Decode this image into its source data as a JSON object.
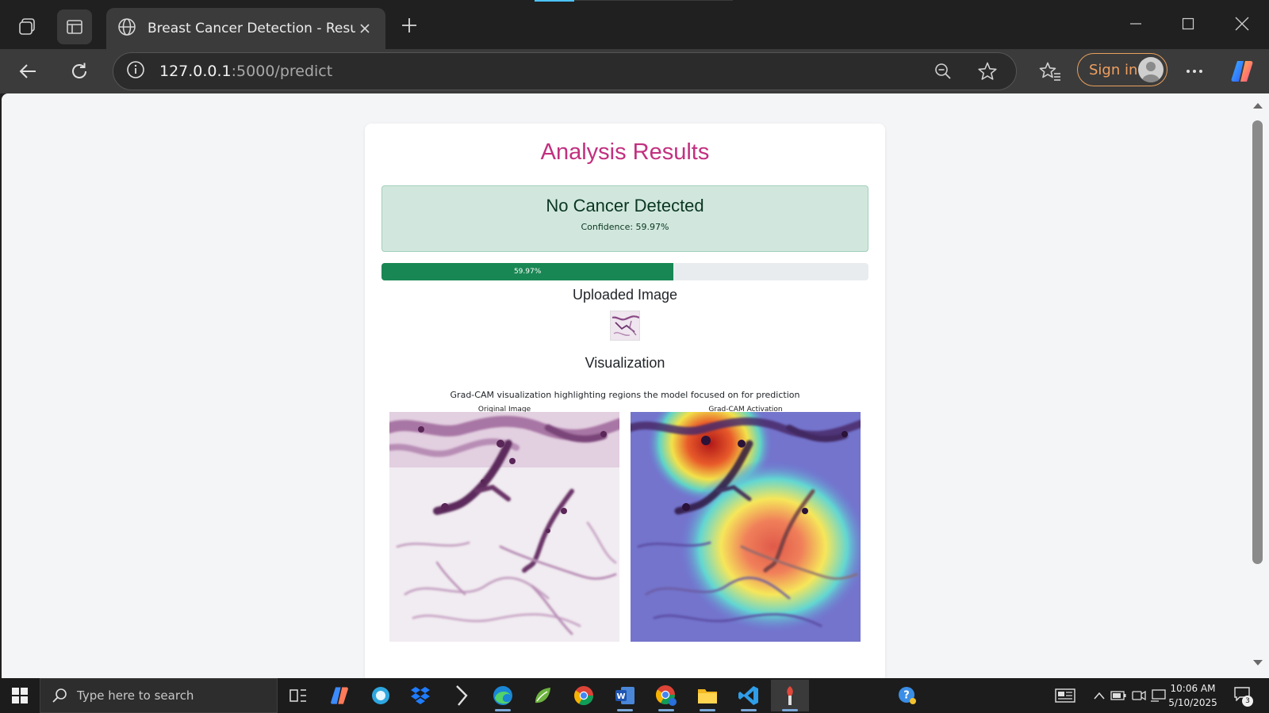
{
  "browser": {
    "tab_title": "Breast Cancer Detection - Results",
    "url_host": "127.0.0.1",
    "url_path": ":5000/predict",
    "signin_label": "Sign in"
  },
  "page": {
    "title": "Analysis Results",
    "result_heading": "No Cancer Detected",
    "confidence_text": "Confidence: 59.97%",
    "confidence_value": 59.97,
    "progress_label": "59.97%",
    "uploaded_heading": "Uploaded Image",
    "viz_heading": "Visualization",
    "viz_caption": "Grad-CAM visualization highlighting regions the model focused on for prediction",
    "fig_original_label": "Original Image",
    "fig_gradcam_label": "Grad-CAM Activation"
  },
  "taskbar": {
    "search_placeholder": "Type here to search",
    "time": "10:06 AM",
    "date": "5/10/2025",
    "notification_count": "3"
  },
  "colors": {
    "title_accent": "#c2307f",
    "success_bg": "#d1e7dd",
    "progress_fill": "#198754",
    "primary_button": "#0d6efd"
  },
  "icons": {
    "tab_favicon": "globe-icon",
    "address_info": "info-icon",
    "zoom": "zoom-out-icon",
    "favorite": "star-icon",
    "favorites": "favorites-icon",
    "more": "more-icon",
    "copilot": "copilot-icon"
  }
}
